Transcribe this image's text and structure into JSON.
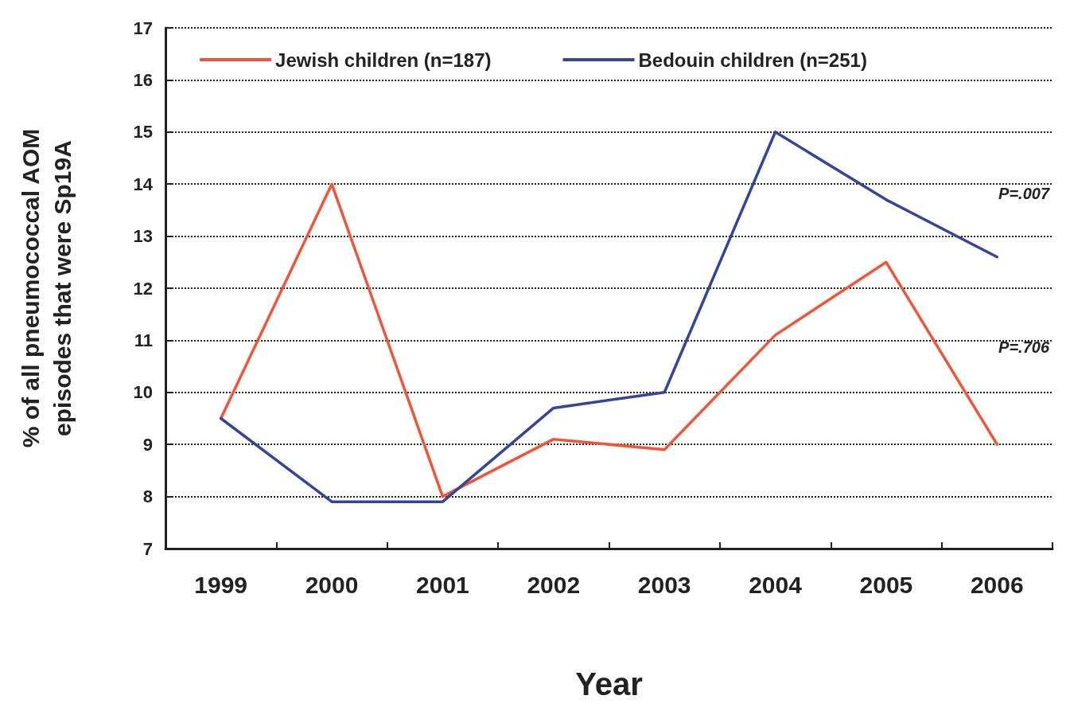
{
  "chart_data": {
    "type": "line",
    "xlabel": "Year",
    "ylabel": "% of all pneumococcal AOM\nepisodes that were Sp19A",
    "categories": [
      "1999",
      "2000",
      "2001",
      "2002",
      "2003",
      "2004",
      "2005",
      "2006"
    ],
    "series": [
      {
        "name": "Jewish children (n=187)",
        "color": "#f0553a",
        "values": [
          9.5,
          14.0,
          8.0,
          9.1,
          8.9,
          11.1,
          12.5,
          9.0
        ]
      },
      {
        "name": "Bedouin children (n=251)",
        "color": "#34459a",
        "values": [
          9.5,
          7.9,
          7.9,
          9.7,
          10.0,
          15.0,
          13.7,
          12.6
        ]
      }
    ],
    "ylim": [
      7,
      17
    ],
    "yticks": [
      7,
      8,
      9,
      10,
      11,
      12,
      13,
      14,
      15,
      16,
      17
    ],
    "grid": "y",
    "legend": "top",
    "marker": "none",
    "line_style": "solid",
    "annotations": [
      "P=.007",
      "P=.706"
    ]
  }
}
